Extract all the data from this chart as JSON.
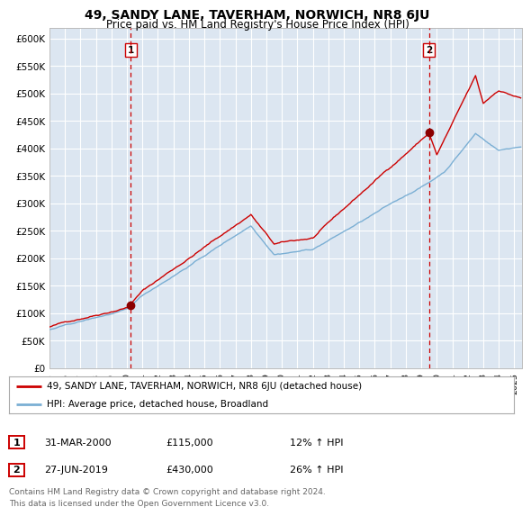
{
  "title": "49, SANDY LANE, TAVERHAM, NORWICH, NR8 6JU",
  "subtitle": "Price paid vs. HM Land Registry's House Price Index (HPI)",
  "ylim": [
    0,
    620000
  ],
  "yticks": [
    0,
    50000,
    100000,
    150000,
    200000,
    250000,
    300000,
    350000,
    400000,
    450000,
    500000,
    550000,
    600000
  ],
  "plot_bg_color": "#dce6f1",
  "grid_color": "#ffffff",
  "red_line_color": "#cc0000",
  "blue_line_color": "#7bafd4",
  "sale1_x": 2000.25,
  "sale1_y": 115000,
  "sale2_x": 2019.5,
  "sale2_y": 430000,
  "sale1_date": "31-MAR-2000",
  "sale1_price": "£115,000",
  "sale1_hpi": "12% ↑ HPI",
  "sale2_date": "27-JUN-2019",
  "sale2_price": "£430,000",
  "sale2_hpi": "26% ↑ HPI",
  "legend_label_red": "49, SANDY LANE, TAVERHAM, NORWICH, NR8 6JU (detached house)",
  "legend_label_blue": "HPI: Average price, detached house, Broadland",
  "footer": "Contains HM Land Registry data © Crown copyright and database right 2024.\nThis data is licensed under the Open Government Licence v3.0.",
  "xmin": 1995.0,
  "xmax": 2025.5
}
